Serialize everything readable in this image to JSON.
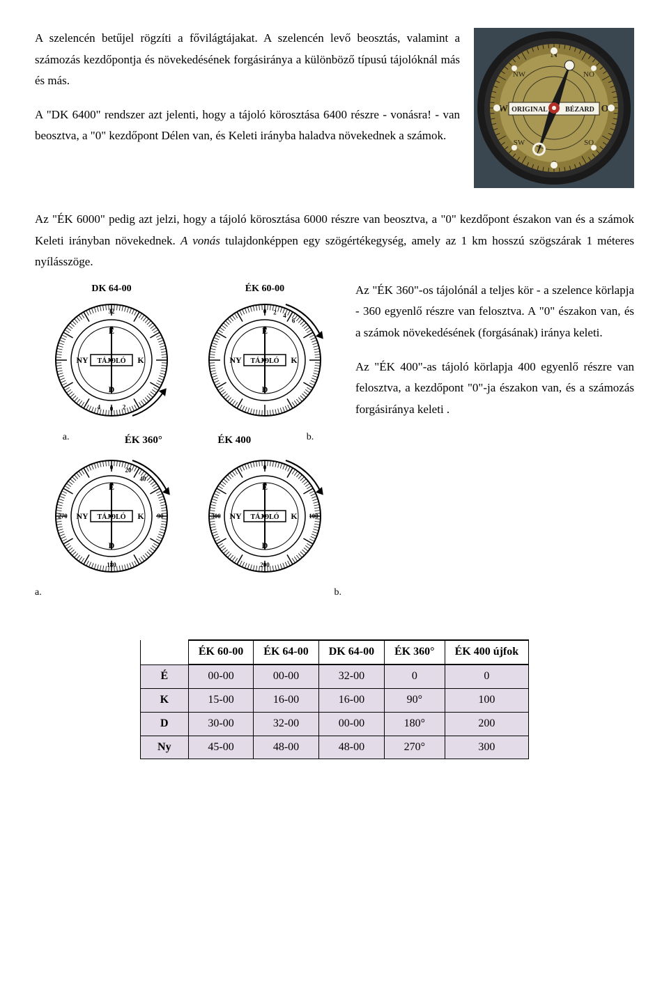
{
  "top": {
    "p1": "A szelencén betűjel rögzíti a fővilágtájakat. A szelencén levő beosztás, valamint a számozás kezdőpontja és növekedésének forgásiránya a különböző típusú tájolóknál más és más.",
    "p2": "A \"DK 6400\" rendszer azt jelenti, hogy a tájoló körosztása 6400 részre - vonásra! - van beosztva, a \"0\" kezdőpont Délen van, és Keleti irányba haladva növekednek a számok."
  },
  "photo": {
    "label_left": "ORIGINAL",
    "label_right": "BÉZARD",
    "face_bg": "#8b7a3a",
    "rim_color": "#2a2a2a",
    "dial_bg": "#a89854",
    "needle_color": "#1a1a1a",
    "center_color": "#b03028",
    "white": "#f5f2e8",
    "cardinals": [
      "N",
      "O",
      "S",
      "W"
    ],
    "intercard": [
      "NO",
      "SO",
      "SW",
      "NW"
    ]
  },
  "mid": {
    "intro": "Az \"ÉK 6000\" pedig azt jelzi, hogy a tájoló körosztása 6000 részre van beosztva, a \"0\" kezdőpont északon van és a számok Keleti irányban növekednek. ",
    "intro2_italic": "A vonás",
    "intro2_rest": " tulajdonképpen egy szögértékegység, amely az 1 km hosszú szögszárak 1 méteres nyílásszöge.",
    "p3": "Az \"ÉK 360\"-os tájolónál a teljes kör - a szelence körlapja - 360 egyenlő részre van felosztva. A \"0\" északon van, és a számok növekedésének (forgásának) iránya keleti.",
    "p4": "Az \"ÉK 400\"-as tájoló körlapja 400 egyenlő részre van felosztva, a kezdőpont \"0\"-ja északon van, és a számozás forgásiránya keleti ."
  },
  "diagram_labels": {
    "a": "a.",
    "b": "b.",
    "dk6400": "DK 64-00",
    "ek6000": "ÉK 60-00",
    "ek360": "ÉK 360°",
    "ek400": "ÉK 400",
    "tajolo": "TÁJOLÓ",
    "n": "É",
    "e": "K",
    "s": "D",
    "w": "NY"
  },
  "table": {
    "headers": [
      "",
      "ÉK 60-00",
      "ÉK 64-00",
      "DK 64-00",
      "ÉK 360°",
      "ÉK 400 újfok"
    ],
    "rows": [
      [
        "É",
        "00-00",
        "00-00",
        "32-00",
        "0",
        "0"
      ],
      [
        "K",
        "15-00",
        "16-00",
        "16-00",
        "90°",
        "100"
      ],
      [
        "D",
        "30-00",
        "32-00",
        "00-00",
        "180°",
        "200"
      ],
      [
        "Ny",
        "45-00",
        "48-00",
        "48-00",
        "270°",
        "300"
      ]
    ],
    "header_bg": "#ffffff",
    "row_bg": "#e4dbe9",
    "border_color": "#000000"
  }
}
